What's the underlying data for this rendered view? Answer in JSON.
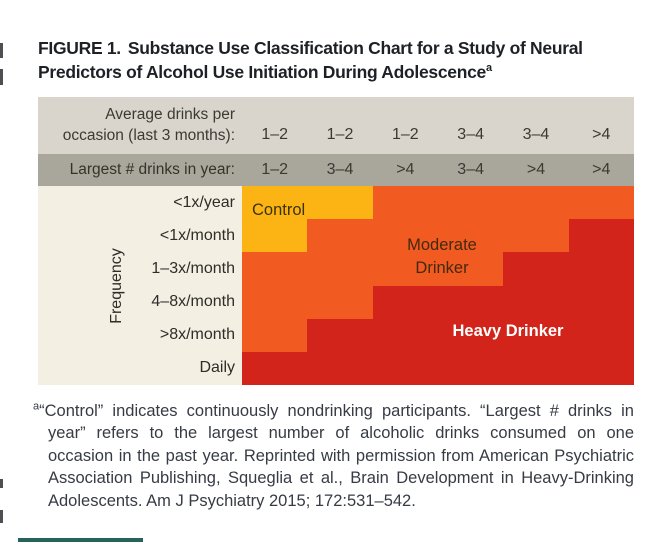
{
  "figure": {
    "title_label": "FIGURE 1.",
    "title_line1": "Substance Use Classification Chart for a Study of Neural",
    "title_line2": "Predictors of Alcohol Use Initiation During Adolescence",
    "title_superscript": "a"
  },
  "chart": {
    "header_row1_label_line1": "Average drinks per",
    "header_row1_label_line2": "occasion (last 3 months):",
    "header_row1_values": [
      "1–2",
      "1–2",
      "1–2",
      "3–4",
      "3–4",
      ">4"
    ],
    "header_row2_label": "Largest # drinks in year:",
    "header_row2_values": [
      "1–2",
      "3–4",
      ">4",
      "3–4",
      ">4",
      ">4"
    ],
    "y_axis_label": "Frequency",
    "row_labels": [
      "<1x/year",
      "<1x/month",
      "1–3x/month",
      "4–8x/month",
      ">8x/month",
      "Daily"
    ],
    "cells": [
      [
        "Y",
        "Y",
        "O",
        "O",
        "O",
        "O"
      ],
      [
        "Y",
        "O",
        "O",
        "O",
        "O",
        "R"
      ],
      [
        "O",
        "O",
        "O",
        "O",
        "R",
        "R"
      ],
      [
        "O",
        "O",
        "R",
        "R",
        "R",
        "R"
      ],
      [
        "O",
        "R",
        "R",
        "R",
        "R",
        "R"
      ],
      [
        "R",
        "R",
        "R",
        "R",
        "R",
        "R"
      ]
    ],
    "legend": {
      "Y": "control",
      "O": "moderate",
      "R": "heavy"
    },
    "region_labels": {
      "control": "Control",
      "moderate_line1": "Moderate",
      "moderate_line2": "Drinker",
      "heavy": "Heavy Drinker"
    },
    "colors": {
      "control": "#FCB415",
      "moderate": "#F15A21",
      "heavy": "#D2241A",
      "header_light": "#D9D5CC",
      "header_dark": "#A9A69C",
      "label_bg": "#F4EFE3"
    }
  },
  "footnote": {
    "marker": "a",
    "text": "“Control” indicates continuously nondrinking participants. “Largest # drinks in year” refers to the largest number of alcoholic drinks consumed on one occasion in the past year. Reprinted with permission from American Psychiatric Association Publishing, Squeglia et al., Brain Development in Heavy-Drinking Adolescents. Am J Psychiatry 2015; 172:531–542."
  },
  "chart_data": {
    "type": "heatmap",
    "title": "FIGURE 1. Substance Use Classification Chart for a Study of Neural Predictors of Alcohol Use Initiation During Adolescence",
    "x_header_1": {
      "label": "Average drinks per occasion (last 3 months):",
      "values": [
        "1–2",
        "1–2",
        "1–2",
        "3–4",
        "3–4",
        ">4"
      ]
    },
    "x_header_2": {
      "label": "Largest # drinks in year:",
      "values": [
        "1–2",
        "3–4",
        ">4",
        "3–4",
        ">4",
        ">4"
      ]
    },
    "ylabel": "Frequency",
    "rows": [
      "<1x/year",
      "<1x/month",
      "1–3x/month",
      "4–8x/month",
      ">8x/month",
      "Daily"
    ],
    "categories": {
      "Y": "Control",
      "O": "Moderate Drinker",
      "R": "Heavy Drinker"
    },
    "matrix": [
      [
        "Y",
        "Y",
        "O",
        "O",
        "O",
        "O"
      ],
      [
        "Y",
        "O",
        "O",
        "O",
        "O",
        "R"
      ],
      [
        "O",
        "O",
        "O",
        "O",
        "R",
        "R"
      ],
      [
        "O",
        "O",
        "R",
        "R",
        "R",
        "R"
      ],
      [
        "O",
        "R",
        "R",
        "R",
        "R",
        "R"
      ],
      [
        "R",
        "R",
        "R",
        "R",
        "R",
        "R"
      ]
    ]
  }
}
